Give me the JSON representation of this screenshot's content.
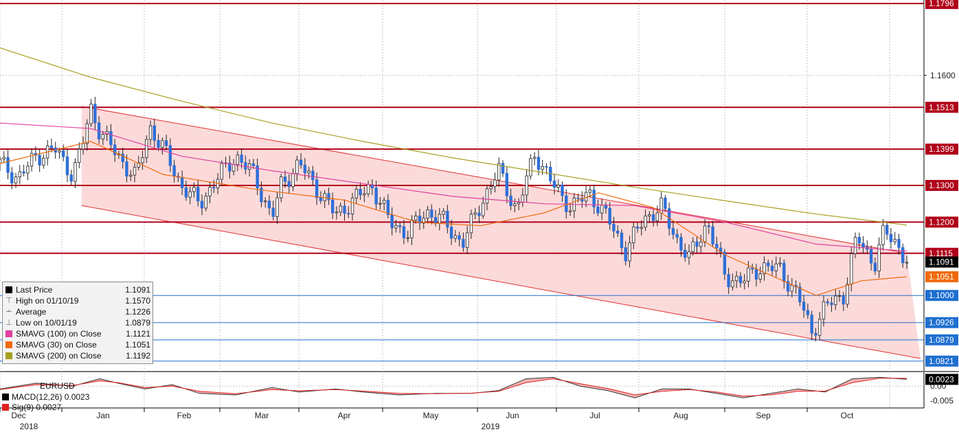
{
  "chart_data": [
    {
      "type": "candlestick",
      "ticker": "EURUSD",
      "y_ticks": [
        "1.1600"
      ],
      "ylim": [
        1.08,
        1.18
      ],
      "x_months": [
        "Dec",
        "Jan",
        "Feb",
        "Mar",
        "Apr",
        "May",
        "Jun",
        "Jul",
        "Aug",
        "Sep",
        "Oct"
      ],
      "x_years": [
        "2018",
        "2019"
      ],
      "horizontal_levels": [
        {
          "label": "1.1796",
          "value": 1.1796,
          "color": "#b0001a"
        },
        {
          "label": "1.1513",
          "value": 1.1513,
          "color": "#b0001a"
        },
        {
          "label": "1.1399",
          "value": 1.1399,
          "color": "#b0001a"
        },
        {
          "label": "1.1300",
          "value": 1.13,
          "color": "#b0001a"
        },
        {
          "label": "1.1200",
          "value": 1.12,
          "color": "#b0001a"
        },
        {
          "label": "1.1115",
          "value": 1.1115,
          "color": "#b0001a"
        },
        {
          "label": "1.1000",
          "value": 1.1,
          "color": "#1e6fd0"
        },
        {
          "label": "1.0926",
          "value": 1.0926,
          "color": "#1e6fd0"
        },
        {
          "label": "1.0879",
          "value": 1.0879,
          "color": "#1e6fd0"
        },
        {
          "label": "1.0821",
          "value": 1.0821,
          "color": "#1e6fd0"
        }
      ],
      "price_badges": [
        {
          "label": "1.1091",
          "value": 1.1091,
          "bg": "#000000",
          "fg": "#ffffff"
        },
        {
          "label": "1.1051",
          "value": 1.1051,
          "bg": "#f06a0a",
          "fg": "#ffffff"
        }
      ],
      "channel": {
        "upper": [
          [
            0.0,
            1.1555
          ],
          [
            1.0,
            1.1115
          ]
        ],
        "lower": [
          [
            0.0,
            1.1285
          ],
          [
            1.0,
            1.0843
          ]
        ],
        "fill": "#fbd3d3",
        "stroke": "#e03030"
      },
      "series": [
        {
          "name": "SMAVG (200) on Close",
          "color": "#a8a020",
          "points": [
            [
              0.0,
              1.1675
            ],
            [
              0.1,
              1.1595
            ],
            [
              0.2,
              1.153
            ],
            [
              0.3,
              1.147
            ],
            [
              0.4,
              1.142
            ],
            [
              0.5,
              1.1375
            ],
            [
              0.6,
              1.1335
            ],
            [
              0.7,
              1.1295
            ],
            [
              0.8,
              1.1258
            ],
            [
              0.9,
              1.1222
            ],
            [
              1.0,
              1.1192
            ]
          ]
        },
        {
          "name": "SMAVG (100) on Close",
          "color": "#e040a0",
          "points": [
            [
              0.0,
              1.147
            ],
            [
              0.1,
              1.1455
            ],
            [
              0.2,
              1.138
            ],
            [
              0.3,
              1.134
            ],
            [
              0.4,
              1.1305
            ],
            [
              0.5,
              1.127
            ],
            [
              0.6,
              1.125
            ],
            [
              0.7,
              1.1245
            ],
            [
              0.8,
              1.12
            ],
            [
              0.9,
              1.114
            ],
            [
              1.0,
              1.1121
            ]
          ]
        },
        {
          "name": "SMAVG (30) on Close",
          "color": "#f06a0a",
          "points": [
            [
              0.0,
              1.136
            ],
            [
              0.1,
              1.142
            ],
            [
              0.18,
              1.133
            ],
            [
              0.28,
              1.129
            ],
            [
              0.38,
              1.126
            ],
            [
              0.46,
              1.12
            ],
            [
              0.53,
              1.119
            ],
            [
              0.6,
              1.1225
            ],
            [
              0.66,
              1.128
            ],
            [
              0.72,
              1.124
            ],
            [
              0.8,
              1.111
            ],
            [
              0.9,
              1.1
            ],
            [
              0.95,
              1.104
            ],
            [
              1.0,
              1.1051
            ]
          ]
        }
      ],
      "candle_path": [
        [
          0.0,
          1.136
        ],
        [
          0.02,
          1.132
        ],
        [
          0.04,
          1.138
        ],
        [
          0.06,
          1.14
        ],
        [
          0.08,
          1.133
        ],
        [
          0.09,
          1.14
        ],
        [
          0.1,
          1.151
        ],
        [
          0.11,
          1.145
        ],
        [
          0.13,
          1.138
        ],
        [
          0.15,
          1.132
        ],
        [
          0.165,
          1.146
        ],
        [
          0.18,
          1.14
        ],
        [
          0.2,
          1.13
        ],
        [
          0.22,
          1.125
        ],
        [
          0.24,
          1.132
        ],
        [
          0.26,
          1.138
        ],
        [
          0.28,
          1.133
        ],
        [
          0.3,
          1.121
        ],
        [
          0.31,
          1.13
        ],
        [
          0.33,
          1.136
        ],
        [
          0.35,
          1.129
        ],
        [
          0.37,
          1.122
        ],
        [
          0.39,
          1.126
        ],
        [
          0.41,
          1.13
        ],
        [
          0.43,
          1.12
        ],
        [
          0.45,
          1.117
        ],
        [
          0.47,
          1.123
        ],
        [
          0.49,
          1.12
        ],
        [
          0.51,
          1.114
        ],
        [
          0.53,
          1.125
        ],
        [
          0.55,
          1.134
        ],
        [
          0.57,
          1.123
        ],
        [
          0.59,
          1.139
        ],
        [
          0.61,
          1.13
        ],
        [
          0.63,
          1.124
        ],
        [
          0.65,
          1.128
        ],
        [
          0.67,
          1.121
        ],
        [
          0.69,
          1.112
        ],
        [
          0.71,
          1.121
        ],
        [
          0.73,
          1.124
        ],
        [
          0.745,
          1.116
        ],
        [
          0.76,
          1.11
        ],
        [
          0.78,
          1.12
        ],
        [
          0.8,
          1.105
        ],
        [
          0.82,
          1.104
        ],
        [
          0.84,
          1.108
        ],
        [
          0.86,
          1.107
        ],
        [
          0.88,
          1.1
        ],
        [
          0.895,
          1.09
        ],
        [
          0.91,
          1.097
        ],
        [
          0.93,
          1.1
        ],
        [
          0.945,
          1.116
        ],
        [
          0.955,
          1.112
        ],
        [
          0.965,
          1.109
        ],
        [
          0.975,
          1.1175
        ],
        [
          0.99,
          1.114
        ],
        [
          1.0,
          1.1091
        ]
      ],
      "macd": {
        "ylim": [
          -0.007,
          0.0045
        ],
        "y_ticks": [
          "0.00",
          "-0.005"
        ],
        "badge": {
          "label": "0.0023",
          "value": 0.0023
        },
        "macd_line": [
          [
            0,
            -0.001
          ],
          [
            0.04,
            0.001
          ],
          [
            0.08,
            0.0
          ],
          [
            0.11,
            0.0025
          ],
          [
            0.13,
            0.001
          ],
          [
            0.16,
            -0.001
          ],
          [
            0.19,
            0.0005
          ],
          [
            0.22,
            -0.0025
          ],
          [
            0.26,
            -0.003
          ],
          [
            0.3,
            -0.0005
          ],
          [
            0.33,
            -0.002
          ],
          [
            0.37,
            -0.001
          ],
          [
            0.4,
            -0.002
          ],
          [
            0.44,
            -0.003
          ],
          [
            0.48,
            -0.0025
          ],
          [
            0.52,
            -0.0025
          ],
          [
            0.55,
            -0.0015
          ],
          [
            0.58,
            0.0025
          ],
          [
            0.61,
            0.003
          ],
          [
            0.64,
            0.0
          ],
          [
            0.67,
            -0.0015
          ],
          [
            0.7,
            -0.004
          ],
          [
            0.73,
            -0.001
          ],
          [
            0.76,
            -0.001
          ],
          [
            0.79,
            -0.0025
          ],
          [
            0.82,
            -0.004
          ],
          [
            0.85,
            -0.0025
          ],
          [
            0.88,
            -0.001
          ],
          [
            0.91,
            -0.002
          ],
          [
            0.94,
            0.0025
          ],
          [
            0.97,
            0.003
          ],
          [
            1.0,
            0.0023
          ]
        ],
        "signal_line": [
          [
            0,
            -0.0012
          ],
          [
            0.04,
            0.0005
          ],
          [
            0.08,
            0.0002
          ],
          [
            0.11,
            0.0018
          ],
          [
            0.13,
            0.0012
          ],
          [
            0.16,
            -0.0005
          ],
          [
            0.19,
            0.0
          ],
          [
            0.22,
            -0.0018
          ],
          [
            0.26,
            -0.0026
          ],
          [
            0.3,
            -0.0012
          ],
          [
            0.33,
            -0.0016
          ],
          [
            0.37,
            -0.0012
          ],
          [
            0.4,
            -0.0017
          ],
          [
            0.44,
            -0.0025
          ],
          [
            0.48,
            -0.0026
          ],
          [
            0.52,
            -0.0024
          ],
          [
            0.55,
            -0.0018
          ],
          [
            0.58,
            0.0012
          ],
          [
            0.61,
            0.0025
          ],
          [
            0.64,
            0.0008
          ],
          [
            0.67,
            -0.0008
          ],
          [
            0.7,
            -0.003
          ],
          [
            0.73,
            -0.0018
          ],
          [
            0.76,
            -0.0012
          ],
          [
            0.79,
            -0.002
          ],
          [
            0.82,
            -0.0034
          ],
          [
            0.85,
            -0.003
          ],
          [
            0.88,
            -0.0018
          ],
          [
            0.91,
            -0.0017
          ],
          [
            0.94,
            0.0012
          ],
          [
            0.97,
            0.0027
          ],
          [
            1.0,
            0.0027
          ]
        ]
      }
    }
  ],
  "legend": {
    "rows": [
      {
        "sym": "box",
        "color": "#000000",
        "label": "Last Price",
        "value": "1.1091"
      },
      {
        "sym": "T",
        "color": "",
        "label": "High on 01/10/19",
        "value": "1.1570"
      },
      {
        "sym": "+",
        "color": "",
        "label": "Average",
        "value": "1.1226"
      },
      {
        "sym": "L",
        "color": "",
        "label": "Low on 10/01/19",
        "value": "1.0879"
      },
      {
        "sym": "box",
        "color": "#e040a0",
        "label": "SMAVG (100)  on Close",
        "value": "1.1121"
      },
      {
        "sym": "box",
        "color": "#f06a0a",
        "label": "SMAVG (30)  on Close",
        "value": "1.1051"
      },
      {
        "sym": "box",
        "color": "#a8a020",
        "label": "SMAVG (200)  on Close",
        "value": "1.1192"
      }
    ]
  },
  "macd_panel": {
    "title": "EURUSD",
    "rows": [
      {
        "color": "#000000",
        "label": "MACD(12,26)",
        "value": "0.0023"
      },
      {
        "color": "#e02020",
        "label": "Sig(9)",
        "value": "0.0027"
      }
    ]
  }
}
